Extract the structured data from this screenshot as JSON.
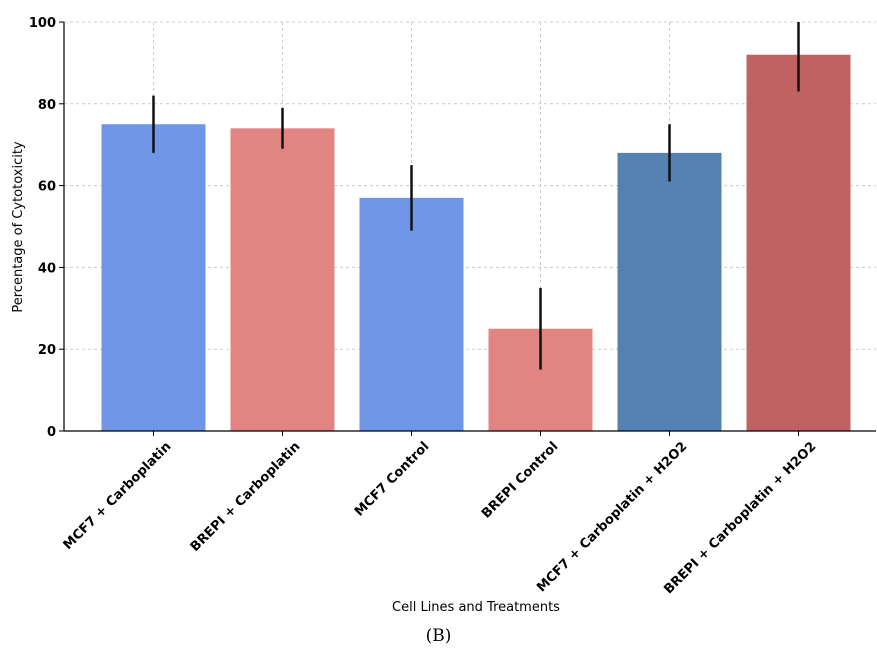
{
  "chart_data": {
    "type": "bar",
    "categories": [
      "MCF7 + Carboplatin",
      "BREPI + Carboplatin",
      "MCF7 Control",
      "BREPI Control",
      "MCF7 + Carboplatin + H2O2",
      "BREPI + Carboplatin + H2O2"
    ],
    "values": [
      75,
      74,
      57,
      25,
      68,
      92
    ],
    "error_low": [
      68,
      69,
      49,
      15,
      61,
      83
    ],
    "error_high": [
      82,
      79,
      65,
      35,
      75,
      100
    ],
    "colors": [
      "#6f95e6",
      "#e08582",
      "#6f95e6",
      "#e08582",
      "#5581b2",
      "#c06262"
    ],
    "xlabel": "Cell Lines and Treatments",
    "ylabel": "Percentage of Cytotoxicity",
    "ylim": [
      0,
      100
    ],
    "yticks": [
      0,
      20,
      40,
      60,
      80,
      100
    ],
    "grid": true
  },
  "caption": "(B)"
}
